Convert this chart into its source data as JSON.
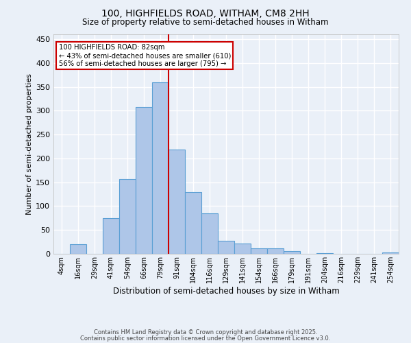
{
  "title1": "100, HIGHFIELDS ROAD, WITHAM, CM8 2HH",
  "title2": "Size of property relative to semi-detached houses in Witham",
  "xlabel": "Distribution of semi-detached houses by size in Witham",
  "ylabel": "Number of semi-detached properties",
  "categories": [
    "4sqm",
    "16sqm",
    "29sqm",
    "41sqm",
    "54sqm",
    "66sqm",
    "79sqm",
    "91sqm",
    "104sqm",
    "116sqm",
    "129sqm",
    "141sqm",
    "154sqm",
    "166sqm",
    "179sqm",
    "191sqm",
    "204sqm",
    "216sqm",
    "229sqm",
    "241sqm",
    "254sqm"
  ],
  "values": [
    0,
    20,
    0,
    75,
    157,
    308,
    360,
    218,
    130,
    85,
    28,
    22,
    12,
    12,
    6,
    0,
    2,
    0,
    0,
    0,
    3
  ],
  "bar_color": "#aec6e8",
  "bar_edge_color": "#5a9fd4",
  "vline_x": 6.5,
  "vline_color": "#cc0000",
  "annotation_text": "100 HIGHFIELDS ROAD: 82sqm\n← 43% of semi-detached houses are smaller (610)\n56% of semi-detached houses are larger (795) →",
  "box_facecolor": "white",
  "box_edgecolor": "#cc0000",
  "ylim": [
    0,
    460
  ],
  "yticks": [
    0,
    50,
    100,
    150,
    200,
    250,
    300,
    350,
    400,
    450
  ],
  "background_color": "#eaf0f8",
  "grid_color": "white",
  "footer1": "Contains HM Land Registry data © Crown copyright and database right 2025.",
  "footer2": "Contains public sector information licensed under the Open Government Licence v3.0."
}
